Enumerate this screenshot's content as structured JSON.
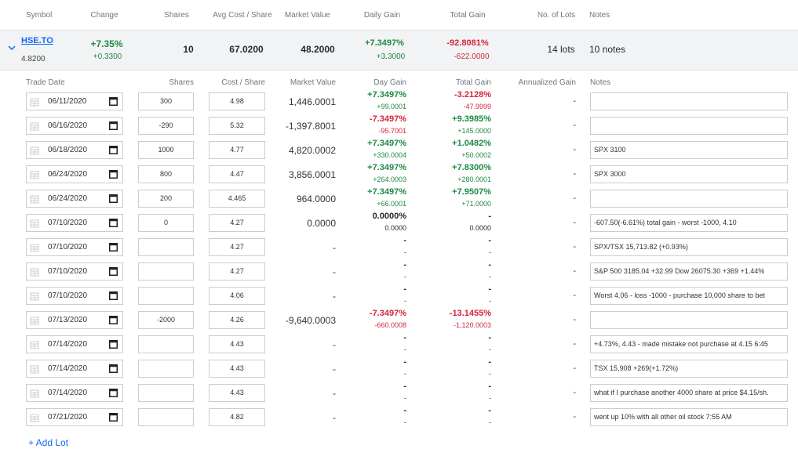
{
  "header": {
    "symbol": "Symbol",
    "change": "Change",
    "shares": "Shares",
    "avg_cost": "Avg Cost / Share",
    "market_value": "Market Value",
    "daily_gain": "Daily Gain",
    "total_gain": "Total Gain",
    "lots": "No. of Lots",
    "notes": "Notes"
  },
  "holding": {
    "symbol": "HSE.TO",
    "price": "4.8200",
    "change_pct": "+7.35%",
    "change_abs": "+0.3300",
    "shares": "10",
    "avg_cost": "67.0200",
    "market_value": "48.2000",
    "daily_gain_pct": "+7.3497%",
    "daily_gain_abs": "+3.3000",
    "total_gain_pct": "-92.8081%",
    "total_gain_abs": "-622.0000",
    "lots": "14 lots",
    "notes": "10 notes"
  },
  "lot_header": {
    "trade_date": "Trade Date",
    "shares": "Shares",
    "cost": "Cost / Share",
    "market_value": "Market Value",
    "day_gain": "Day Gain",
    "total_gain": "Total Gain",
    "annualized": "Annualized Gain",
    "notes": "Notes"
  },
  "lots": [
    {
      "date": "06/11/2020",
      "shares": "300",
      "cost": "4.98",
      "mv": "1,446.0001",
      "dg_pct": "+7.3497%",
      "dg_abs": "+99.0001",
      "tg_pct": "-3.2128%",
      "tg_abs": "-47.9999",
      "ann": "-",
      "note": ""
    },
    {
      "date": "06/16/2020",
      "shares": "-290",
      "cost": "5.32",
      "mv": "-1,397.8001",
      "dg_pct": "-7.3497%",
      "dg_abs": "-95.7001",
      "tg_pct": "+9.3985%",
      "tg_abs": "+145.0000",
      "ann": "-",
      "note": ""
    },
    {
      "date": "06/18/2020",
      "shares": "1000",
      "cost": "4.77",
      "mv": "4,820.0002",
      "dg_pct": "+7.3497%",
      "dg_abs": "+330.0004",
      "tg_pct": "+1.0482%",
      "tg_abs": "+50.0002",
      "ann": "-",
      "note": "SPX 3100"
    },
    {
      "date": "06/24/2020",
      "shares": "800",
      "cost": "4.47",
      "mv": "3,856.0001",
      "dg_pct": "+7.3497%",
      "dg_abs": "+264.0003",
      "tg_pct": "+7.8300%",
      "tg_abs": "+280.0001",
      "ann": "-",
      "note": "SPX 3000"
    },
    {
      "date": "06/24/2020",
      "shares": "200",
      "cost": "4.465",
      "mv": "964.0000",
      "dg_pct": "+7.3497%",
      "dg_abs": "+66.0001",
      "tg_pct": "+7.9507%",
      "tg_abs": "+71.0000",
      "ann": "-",
      "note": ""
    },
    {
      "date": "07/10/2020",
      "shares": "0",
      "cost": "4.27",
      "mv": "0.0000",
      "dg_pct": "0.0000%",
      "dg_abs": "0.0000",
      "tg_pct": "-",
      "tg_abs": "0.0000",
      "ann": "-",
      "note": "-607.50(-6.61%) total gain - worst -1000, 4.10"
    },
    {
      "date": "07/10/2020",
      "shares": "",
      "cost": "4.27",
      "mv": "-",
      "dg_pct": "-",
      "dg_abs": "-",
      "tg_pct": "-",
      "tg_abs": "-",
      "ann": "-",
      "note": "SPX/TSX 15,713.82 (+0.93%)"
    },
    {
      "date": "07/10/2020",
      "shares": "",
      "cost": "4.27",
      "mv": "-",
      "dg_pct": "-",
      "dg_abs": "-",
      "tg_pct": "-",
      "tg_abs": "-",
      "ann": "-",
      "note": "S&P 500 3185.04 +32.99 Dow 26075.30 +369 +1.44%"
    },
    {
      "date": "07/10/2020",
      "shares": "",
      "cost": "4.06",
      "mv": "-",
      "dg_pct": "-",
      "dg_abs": "-",
      "tg_pct": "-",
      "tg_abs": "-",
      "ann": "-",
      "note": "Worst 4.06 - loss -1000 - purchase 10,000 share to bet"
    },
    {
      "date": "07/13/2020",
      "shares": "-2000",
      "cost": "4.26",
      "mv": "-9,640.0003",
      "dg_pct": "-7.3497%",
      "dg_abs": "-660.0008",
      "tg_pct": "-13.1455%",
      "tg_abs": "-1,120.0003",
      "ann": "-",
      "note": ""
    },
    {
      "date": "07/14/2020",
      "shares": "",
      "cost": "4.43",
      "mv": "-",
      "dg_pct": "-",
      "dg_abs": "-",
      "tg_pct": "-",
      "tg_abs": "-",
      "ann": "-",
      "note": "+4.73%, 4.43 - made mistake not purchase at 4.15  6:45"
    },
    {
      "date": "07/14/2020",
      "shares": "",
      "cost": "4.43",
      "mv": "-",
      "dg_pct": "-",
      "dg_abs": "-",
      "tg_pct": "-",
      "tg_abs": "-",
      "ann": "-",
      "note": "TSX 15,908 +269(+1.72%)"
    },
    {
      "date": "07/14/2020",
      "shares": "",
      "cost": "4.43",
      "mv": "-",
      "dg_pct": "-",
      "dg_abs": "-",
      "tg_pct": "-",
      "tg_abs": "-",
      "ann": "-",
      "note": "what if I purchase another 4000 share at price $4.15/sh."
    },
    {
      "date": "07/21/2020",
      "shares": "",
      "cost": "4.82",
      "mv": "-",
      "dg_pct": "-",
      "dg_abs": "-",
      "tg_pct": "-",
      "tg_abs": "-",
      "ann": "-",
      "note": "went up 10% with all other oil stock 7:55 AM"
    }
  ],
  "add_lot": "+ Add Lot",
  "colors": {
    "positive": "#1e8a43",
    "negative": "#d4243a",
    "link": "#0f69ff"
  }
}
